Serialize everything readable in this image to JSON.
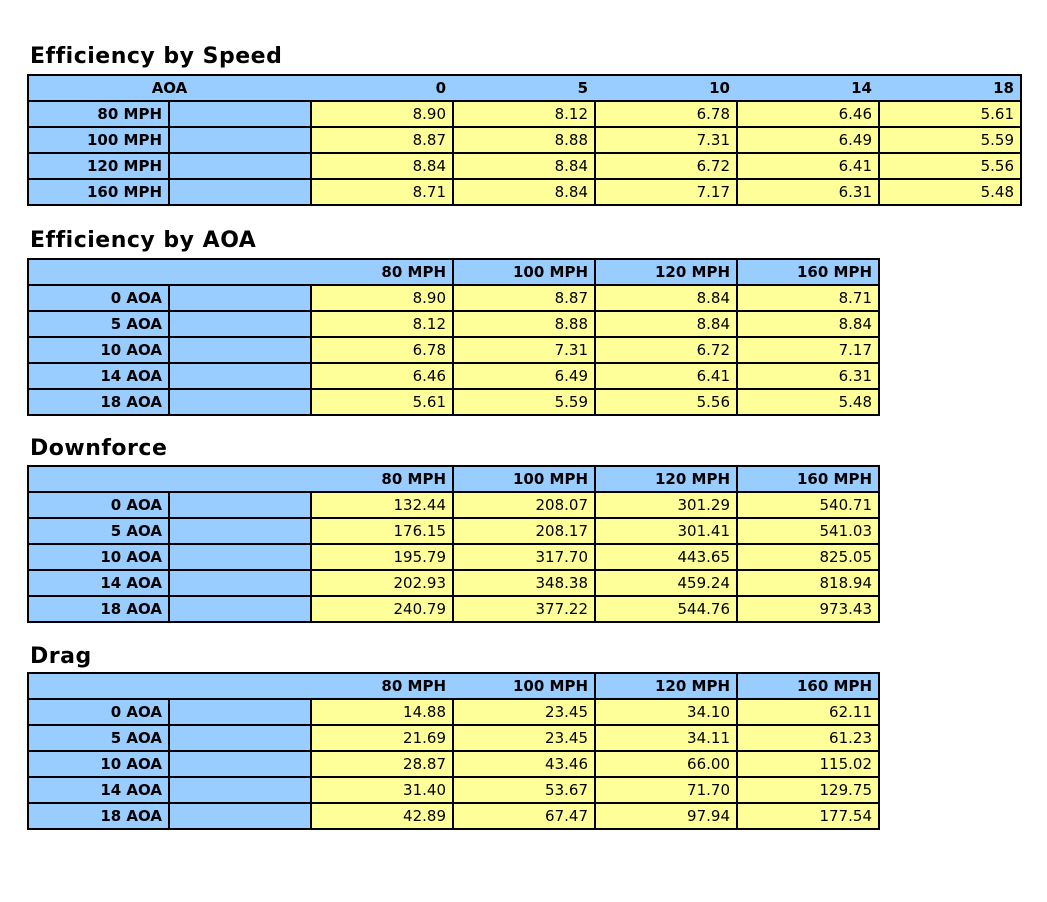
{
  "colors": {
    "header_blue": "#99CCFF",
    "cell_yellow": "#FFFF99",
    "border_black": "#000000",
    "text_black": "#000000",
    "page_background": "#FFFFFF"
  },
  "sections": [
    {
      "title": "Efficiency by Speed",
      "corner_label": "AOA",
      "col_headers": [
        "0",
        "5",
        "10",
        "14",
        "18"
      ],
      "rows": [
        {
          "label": "80 MPH",
          "values": [
            "8.90",
            "8.12",
            "6.78",
            "6.46",
            "5.61"
          ]
        },
        {
          "label": "100 MPH",
          "values": [
            "8.87",
            "8.88",
            "7.31",
            "6.49",
            "5.59"
          ]
        },
        {
          "label": "120 MPH",
          "values": [
            "8.84",
            "8.84",
            "6.72",
            "6.41",
            "5.56"
          ]
        },
        {
          "label": "160 MPH",
          "values": [
            "8.71",
            "8.84",
            "7.17",
            "6.31",
            "5.48"
          ]
        }
      ]
    },
    {
      "title": "Efficiency by AOA",
      "corner_label": "",
      "col_headers": [
        "80 MPH",
        "100 MPH",
        "120 MPH",
        "160 MPH"
      ],
      "rows": [
        {
          "label": "0 AOA",
          "values": [
            "8.90",
            "8.87",
            "8.84",
            "8.71"
          ]
        },
        {
          "label": "5 AOA",
          "values": [
            "8.12",
            "8.88",
            "8.84",
            "8.84"
          ]
        },
        {
          "label": "10 AOA",
          "values": [
            "6.78",
            "7.31",
            "6.72",
            "7.17"
          ]
        },
        {
          "label": "14 AOA",
          "values": [
            "6.46",
            "6.49",
            "6.41",
            "6.31"
          ]
        },
        {
          "label": "18 AOA",
          "values": [
            "5.61",
            "5.59",
            "5.56",
            "5.48"
          ]
        }
      ]
    },
    {
      "title": "Downforce",
      "corner_label": "",
      "col_headers": [
        "80 MPH",
        "100 MPH",
        "120 MPH",
        "160 MPH"
      ],
      "rows": [
        {
          "label": "0 AOA",
          "values": [
            "132.44",
            "208.07",
            "301.29",
            "540.71"
          ]
        },
        {
          "label": "5 AOA",
          "values": [
            "176.15",
            "208.17",
            "301.41",
            "541.03"
          ]
        },
        {
          "label": "10 AOA",
          "values": [
            "195.79",
            "317.70",
            "443.65",
            "825.05"
          ]
        },
        {
          "label": "14 AOA",
          "values": [
            "202.93",
            "348.38",
            "459.24",
            "818.94"
          ]
        },
        {
          "label": "18 AOA",
          "values": [
            "240.79",
            "377.22",
            "544.76",
            "973.43"
          ]
        }
      ]
    },
    {
      "title": "Drag",
      "corner_label": "",
      "col_headers": [
        "80 MPH",
        "100 MPH",
        "120 MPH",
        "160 MPH"
      ],
      "rows": [
        {
          "label": "0 AOA",
          "values": [
            "14.88",
            "23.45",
            "34.10",
            "62.11"
          ]
        },
        {
          "label": "5 AOA",
          "values": [
            "21.69",
            "23.45",
            "34.11",
            "61.23"
          ]
        },
        {
          "label": "10 AOA",
          "values": [
            "28.87",
            "43.46",
            "66.00",
            "115.02"
          ]
        },
        {
          "label": "14 AOA",
          "values": [
            "31.40",
            "53.67",
            "71.70",
            "129.75"
          ]
        },
        {
          "label": "18 AOA",
          "values": [
            "42.89",
            "67.47",
            "97.94",
            "177.54"
          ]
        }
      ]
    }
  ]
}
